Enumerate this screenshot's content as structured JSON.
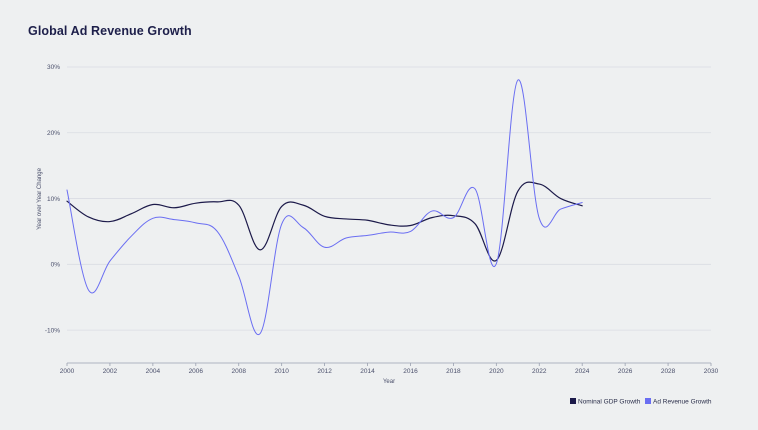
{
  "title": "Global Ad Revenue Growth",
  "colors": {
    "gdp": "#1c1a4a",
    "ad": "#6a6ef2",
    "grid": "#d9dce3",
    "axis": "#9aa0b0",
    "background": "#eef0f1"
  },
  "chart_data": {
    "type": "line",
    "title": "Global Ad Revenue Growth",
    "xlabel": "Year",
    "ylabel": "Year over Year Change",
    "xlim": [
      2000,
      2030
    ],
    "ylim": [
      -15,
      30
    ],
    "x_ticks": [
      2000,
      2002,
      2004,
      2006,
      2008,
      2010,
      2012,
      2014,
      2016,
      2018,
      2020,
      2022,
      2024,
      2026,
      2028,
      2030
    ],
    "x_tick_labels": [
      "2000",
      "2002",
      "2004",
      "2006",
      "2008",
      "2010",
      "2012",
      "2014",
      "2016",
      "2018",
      "2020",
      "2022",
      "2024",
      "2026",
      "2028",
      "2030"
    ],
    "y_ticks": [
      -10,
      0,
      10,
      20,
      30
    ],
    "y_tick_labels": [
      "-10%",
      "0%",
      "10%",
      "20%",
      "30%"
    ],
    "grid": true,
    "legend_position": "bottom-right",
    "series": [
      {
        "name": "Nominal GDP Growth",
        "x": [
          2000,
          2001,
          2002,
          2003,
          2004,
          2005,
          2006,
          2007,
          2008,
          2009,
          2010,
          2011,
          2012,
          2013,
          2014,
          2015,
          2016,
          2017,
          2018,
          2019,
          2020,
          2021,
          2022,
          2023,
          2024
        ],
        "values": [
          9.6,
          7.2,
          6.5,
          7.7,
          9.1,
          8.6,
          9.3,
          9.5,
          9.0,
          2.2,
          8.8,
          9.0,
          7.3,
          6.9,
          6.7,
          6.0,
          5.9,
          7.1,
          7.4,
          6.2,
          0.6,
          11.1,
          12.2,
          10.0,
          8.9
        ]
      },
      {
        "name": "Ad Revenue Growth",
        "x": [
          2000,
          2001,
          2002,
          2003,
          2004,
          2005,
          2006,
          2007,
          2008,
          2009,
          2010,
          2011,
          2012,
          2013,
          2014,
          2015,
          2016,
          2017,
          2018,
          2019,
          2020,
          2021,
          2022,
          2023,
          2024
        ],
        "values": [
          11.3,
          -3.9,
          0.5,
          4.3,
          7.0,
          6.8,
          6.3,
          5.0,
          -1.8,
          -10.5,
          6.1,
          5.6,
          2.6,
          4.0,
          4.4,
          4.9,
          5.0,
          8.1,
          7.1,
          11.5,
          0.1,
          28.0,
          7.0,
          8.4,
          9.4
        ]
      }
    ]
  }
}
